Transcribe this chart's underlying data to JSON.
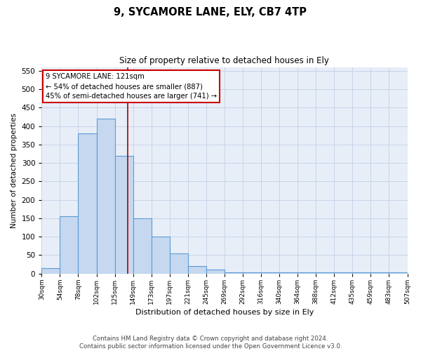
{
  "title": "9, SYCAMORE LANE, ELY, CB7 4TP",
  "subtitle": "Size of property relative to detached houses in Ely",
  "xlabel": "Distribution of detached houses by size in Ely",
  "ylabel": "Number of detached properties",
  "bin_edges": [
    "30sqm",
    "54sqm",
    "78sqm",
    "102sqm",
    "125sqm",
    "149sqm",
    "173sqm",
    "197sqm",
    "221sqm",
    "245sqm",
    "269sqm",
    "292sqm",
    "316sqm",
    "340sqm",
    "364sqm",
    "388sqm",
    "412sqm",
    "435sqm",
    "459sqm",
    "483sqm",
    "507sqm"
  ],
  "bar_values": [
    15,
    155,
    380,
    420,
    320,
    150,
    100,
    55,
    20,
    10,
    3,
    3,
    3,
    3,
    4,
    3,
    3,
    3,
    3,
    3
  ],
  "bar_color": "#c5d8ef",
  "bar_edge_color": "#5b9bd5",
  "grid_color": "#c8d4e8",
  "background_color": "#e8eef8",
  "ylim": [
    0,
    560
  ],
  "yticks": [
    0,
    50,
    100,
    150,
    200,
    250,
    300,
    350,
    400,
    450,
    500,
    550
  ],
  "vline_position": 4.7,
  "vline_color": "#aa0000",
  "annotation_text": "9 SYCAMORE LANE: 121sqm\n← 54% of detached houses are smaller (887)\n45% of semi-detached houses are larger (741) →",
  "annotation_box_color": "#cc0000",
  "footer_line1": "Contains HM Land Registry data © Crown copyright and database right 2024.",
  "footer_line2": "Contains public sector information licensed under the Open Government Licence v3.0."
}
